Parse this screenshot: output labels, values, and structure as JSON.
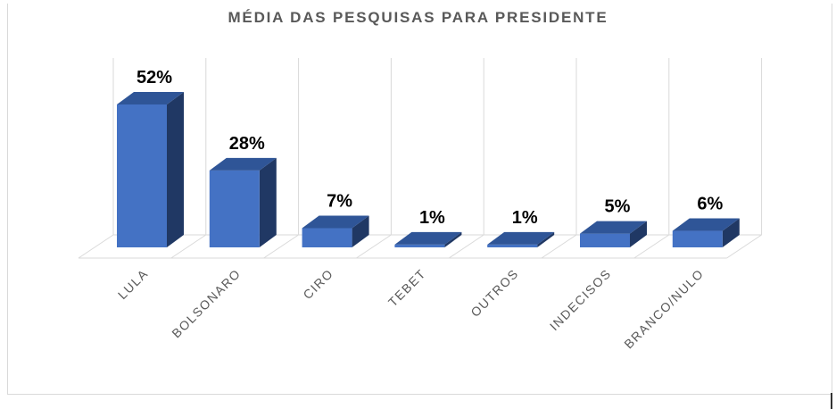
{
  "chart_data": {
    "type": "bar",
    "title": "MÉDIA DAS PESQUISAS PARA PRESIDENTE",
    "categories": [
      "LULA",
      "BOLSONARO",
      "CIRO",
      "TEBET",
      "OUTROS",
      "INDECISOS",
      "BRANCO/NULO"
    ],
    "values": [
      52,
      28,
      7,
      1,
      1,
      5,
      6
    ],
    "data_labels": [
      "52%",
      "28%",
      "7%",
      "1%",
      "1%",
      "5%",
      "6%"
    ],
    "ylim": [
      0,
      52
    ],
    "grid": true,
    "legend": "none",
    "colors": {
      "bar_front": "#4472c4",
      "bar_top": "#2f5597",
      "bar_side": "#203864",
      "grid": "#d9d9d9"
    }
  }
}
